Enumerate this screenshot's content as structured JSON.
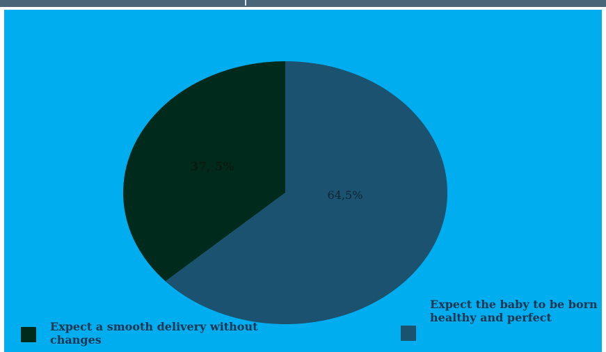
{
  "chart_data": {
    "type": "pie",
    "title": "",
    "slices": [
      {
        "label": "Expect a smooth delivery without changes",
        "value": 37.5,
        "value_label": "37, 5%",
        "color": "#002b1c"
      },
      {
        "label": "Expect the baby to be born healthy and perfect",
        "value": 64.5,
        "value_label": "64,5%",
        "color": "#1a5270"
      }
    ],
    "legend_placement": "bottom",
    "background": "#00adef"
  }
}
